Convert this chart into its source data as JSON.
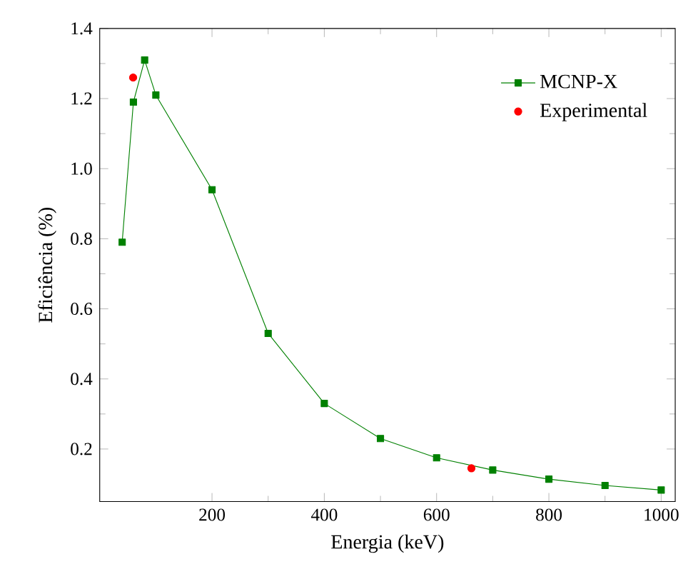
{
  "chart_data": {
    "type": "line",
    "xlabel": "Energia (keV)",
    "ylabel": "Eficiência (%)",
    "xlim": [
      0,
      1025
    ],
    "ylim": [
      0.05,
      1.4
    ],
    "xticks": [
      200,
      400,
      600,
      800,
      1000
    ],
    "yticks": [
      0.2,
      0.4,
      0.6,
      0.8,
      {
        "value": 1.0,
        "label": "1.0"
      },
      1.2,
      1.4
    ],
    "legend": "top right",
    "grid": false,
    "series": [
      {
        "name": "MCNP-X",
        "color": "#008000",
        "marker": "square",
        "x": [
          40,
          60,
          80,
          100,
          200,
          300,
          400,
          500,
          600,
          700,
          800,
          900,
          1000
        ],
        "values": [
          0.79,
          1.19,
          1.31,
          1.21,
          0.94,
          0.53,
          0.33,
          0.23,
          0.175,
          0.14,
          0.114,
          0.096,
          0.083
        ]
      },
      {
        "name": "Experimental",
        "type": "scatter",
        "color": "#ff0000",
        "marker": "circle",
        "x": [
          59.5,
          662
        ],
        "values": [
          1.26,
          0.145
        ]
      }
    ]
  }
}
